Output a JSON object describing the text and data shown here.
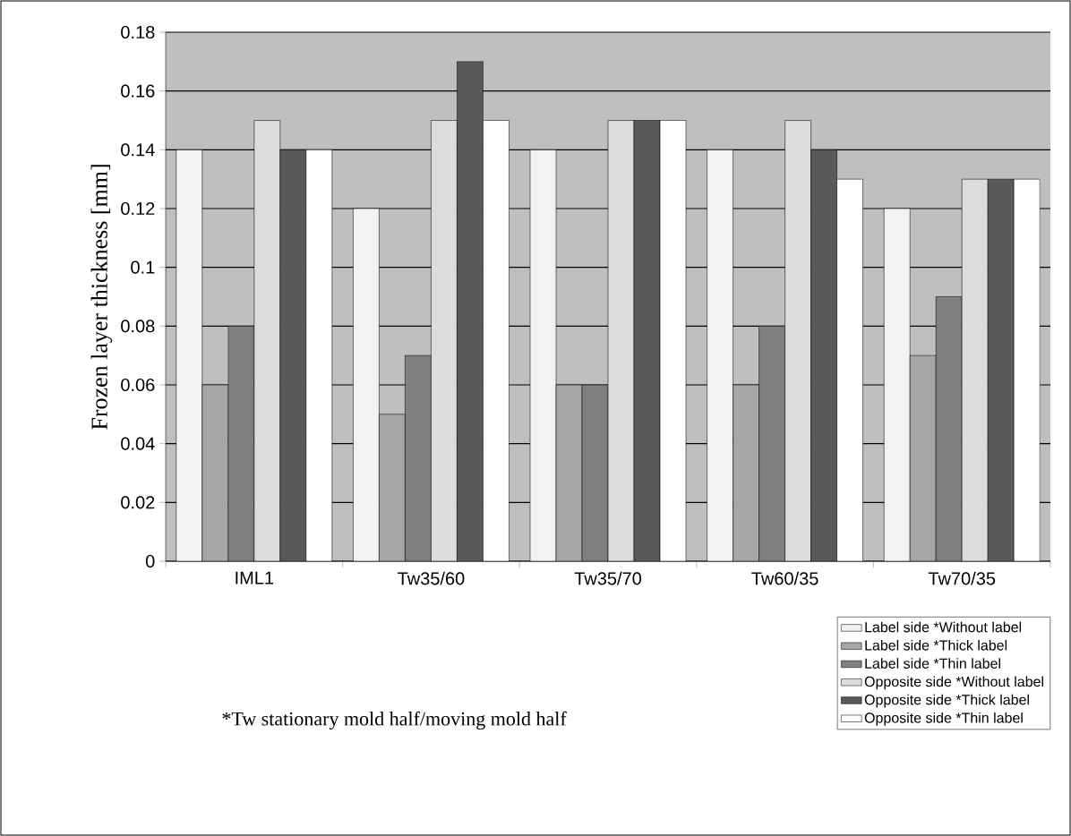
{
  "chart_data": {
    "type": "bar",
    "ylabel": "Frozen layer thickness [mm]",
    "categories": [
      "IML1",
      "Tw35/60",
      "Tw35/70",
      "Tw60/35",
      "Tw70/35"
    ],
    "series": [
      {
        "name": "Label side *Without label",
        "color": "#f2f2f2",
        "values": [
          0.14,
          0.12,
          0.14,
          0.14,
          0.12
        ]
      },
      {
        "name": "Label side *Thick label",
        "color": "#a6a6a6",
        "values": [
          0.06,
          0.05,
          0.06,
          0.06,
          0.07
        ]
      },
      {
        "name": "Label side *Thin label",
        "color": "#7f7f7f",
        "values": [
          0.08,
          0.07,
          0.06,
          0.08,
          0.09
        ]
      },
      {
        "name": "Opposite side *Without label",
        "color": "#dcdcdc",
        "values": [
          0.15,
          0.15,
          0.15,
          0.15,
          0.13
        ]
      },
      {
        "name": "Opposite side *Thick label",
        "color": "#595959",
        "values": [
          0.14,
          0.17,
          0.15,
          0.14,
          0.13
        ]
      },
      {
        "name": "Opposite side *Thin label",
        "color": "#ffffff",
        "values": [
          0.14,
          0.15,
          0.15,
          0.13,
          0.13
        ]
      }
    ],
    "ylim": [
      0,
      0.18
    ],
    "yticks": [
      0,
      0.02,
      0.04,
      0.06,
      0.08,
      0.1,
      0.12,
      0.14,
      0.16,
      0.18
    ],
    "grid": "y",
    "legend": "bottom right",
    "annotations": [
      "*Tw stationary mold half/moving mold half"
    ]
  }
}
